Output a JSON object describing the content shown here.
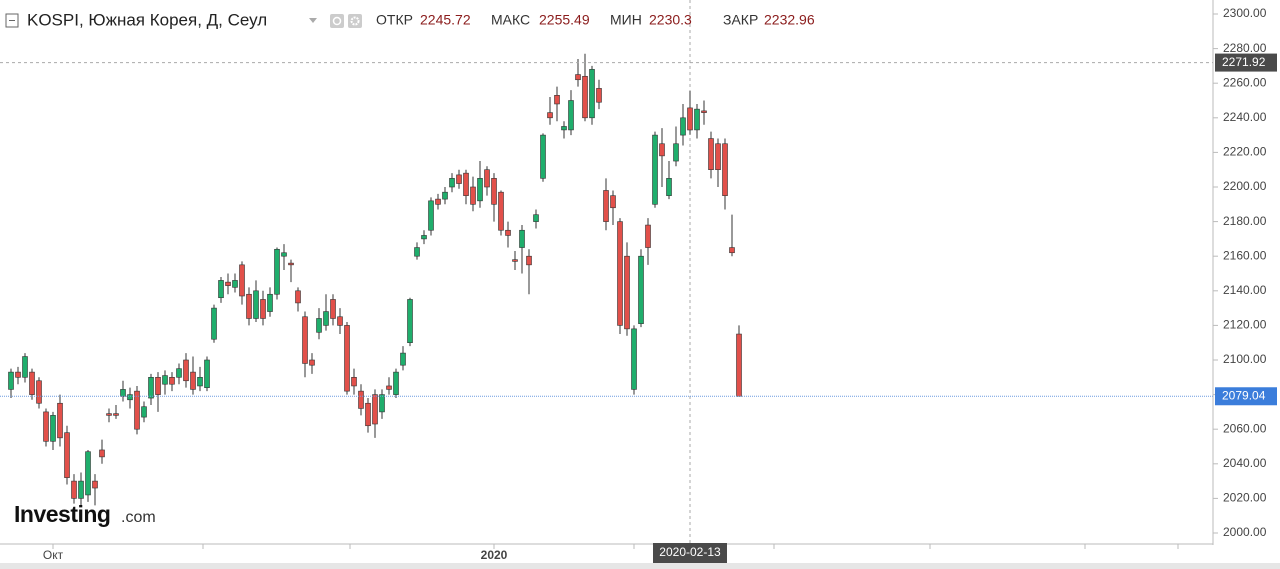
{
  "chart_data": {
    "type": "candlestick",
    "title": "KOSPI, Южная Корея, Д, Сеул",
    "header_labels": [
      "ОТКР",
      "МАКС",
      "МИН",
      "ЗАКР"
    ],
    "logo": {
      "main": "Investing",
      "suffix": ".com"
    },
    "up_color": "#1fae6c",
    "down_color": "#e2504a",
    "categories": [
      null,
      null,
      null,
      null,
      null,
      null,
      "Окт",
      null,
      null,
      null,
      null,
      null,
      null,
      null,
      null,
      null,
      null,
      null,
      null,
      null,
      null,
      null,
      null,
      null,
      null,
      null,
      null,
      null,
      null,
      null,
      null,
      null,
      null,
      null,
      null,
      null,
      null,
      null,
      null,
      null,
      null,
      null,
      null,
      null,
      null,
      null,
      null,
      null,
      null,
      null,
      null,
      null,
      null,
      null,
      null,
      null,
      null,
      null,
      null,
      null,
      null,
      null,
      null,
      null,
      null,
      null,
      null,
      null,
      null,
      "2020",
      null,
      null,
      null,
      null,
      null,
      null,
      null,
      null,
      null,
      null,
      null,
      null,
      null,
      null,
      null,
      null,
      null,
      null,
      null,
      null,
      null,
      null,
      null,
      null,
      null,
      null,
      null,
      "2020-02-13",
      null,
      null,
      null,
      null,
      null,
      null,
      null
    ],
    "open": [
      2083,
      2093,
      2090,
      2093,
      2088,
      2070,
      2053,
      2075,
      2058,
      2030,
      2020,
      2022,
      2030,
      2048,
      2069,
      2069,
      2079,
      2077,
      2082,
      2067,
      2078,
      2090,
      2086,
      2090,
      2090,
      2100,
      2093,
      2085,
      2084,
      2112,
      2136,
      2145,
      2142,
      2155,
      2138,
      2124,
      2135,
      2128,
      2138,
      2160,
      2156,
      2140,
      2125,
      2100,
      2116,
      2120,
      2135,
      2125,
      2120,
      2090,
      2082,
      2075,
      2080,
      2070,
      2085,
      2080,
      2097,
      2110,
      2160,
      2170,
      2175,
      2193,
      2193,
      2200,
      2207,
      2208,
      2200,
      2192,
      2210,
      2205,
      2197,
      2175,
      2158,
      2165,
      2160,
      2180,
      2205,
      2243,
      2253,
      2233,
      2233,
      2265,
      2264,
      2240,
      2257,
      2198,
      2195,
      2180,
      2160,
      2083,
      2121,
      2178,
      2190,
      2225,
      2195,
      2215,
      2230,
      2245.72,
      2233,
      2244,
      2228,
      2225,
      2225,
      2165,
      2115
    ],
    "high": [
      2095,
      2096,
      2104,
      2095,
      2090,
      2072,
      2070,
      2080,
      2062,
      2034,
      2035,
      2048,
      2034,
      2054,
      2072,
      2074,
      2088,
      2084,
      2085,
      2076,
      2092,
      2093,
      2094,
      2093,
      2098,
      2104,
      2102,
      2096,
      2102,
      2132,
      2148,
      2150,
      2150,
      2157,
      2142,
      2146,
      2140,
      2142,
      2165,
      2167,
      2158,
      2142,
      2128,
      2104,
      2130,
      2138,
      2138,
      2130,
      2122,
      2095,
      2086,
      2078,
      2083,
      2083,
      2090,
      2095,
      2108,
      2136,
      2168,
      2175,
      2194,
      2196,
      2200,
      2208,
      2210,
      2210,
      2206,
      2215,
      2212,
      2208,
      2198,
      2180,
      2163,
      2178,
      2164,
      2187,
      2231,
      2252,
      2258,
      2238,
      2256,
      2274,
      2277,
      2270,
      2262,
      2205,
      2198,
      2182,
      2168,
      2120,
      2164,
      2182,
      2232,
      2234,
      2215,
      2235,
      2248,
      2255.49,
      2248,
      2250,
      2232,
      2228,
      2228,
      2184,
      2120
    ],
    "low": [
      2078,
      2086,
      2087,
      2077,
      2072,
      2050,
      2048,
      2050,
      2028,
      2017,
      2016,
      2018,
      2016,
      2040,
      2064,
      2066,
      2076,
      2072,
      2057,
      2064,
      2074,
      2070,
      2080,
      2082,
      2086,
      2084,
      2080,
      2082,
      2082,
      2110,
      2133,
      2138,
      2139,
      2132,
      2120,
      2122,
      2120,
      2125,
      2135,
      2152,
      2145,
      2128,
      2090,
      2092,
      2112,
      2117,
      2120,
      2115,
      2080,
      2080,
      2068,
      2058,
      2055,
      2066,
      2080,
      2078,
      2094,
      2108,
      2158,
      2167,
      2172,
      2187,
      2190,
      2197,
      2199,
      2190,
      2186,
      2188,
      2195,
      2180,
      2172,
      2165,
      2152,
      2150,
      2138,
      2176,
      2203,
      2236,
      2238,
      2228,
      2230,
      2258,
      2238,
      2236,
      2245,
      2175,
      2178,
      2115,
      2114,
      2080,
      2119,
      2155,
      2188,
      2200,
      2193,
      2212,
      2224,
      2230.3,
      2228,
      2236,
      2205,
      2200,
      2187,
      2160,
      2079.04
    ],
    "close": [
      2093,
      2090,
      2102,
      2080,
      2075,
      2053,
      2068,
      2055,
      2032,
      2020,
      2030,
      2047,
      2026,
      2044,
      2068,
      2068,
      2083,
      2080,
      2060,
      2073,
      2090,
      2080,
      2091,
      2086,
      2095,
      2088,
      2083,
      2090,
      2100,
      2130,
      2146,
      2143,
      2146,
      2137,
      2124,
      2140,
      2124,
      2138,
      2164,
      2162,
      2155,
      2133,
      2098,
      2097,
      2124,
      2128,
      2124,
      2120,
      2082,
      2085,
      2072,
      2062,
      2063,
      2080,
      2083,
      2093,
      2104,
      2135,
      2165,
      2172,
      2192,
      2190,
      2197,
      2205,
      2202,
      2195,
      2190,
      2205,
      2200,
      2190,
      2175,
      2172,
      2157,
      2175,
      2155,
      2184,
      2230,
      2240,
      2248,
      2235,
      2250,
      2262,
      2240,
      2268,
      2249,
      2180,
      2188,
      2120,
      2118,
      2118,
      2160,
      2165,
      2230,
      2218,
      2205,
      2225,
      2240,
      2232.96,
      2245,
      2243,
      2210,
      2210,
      2195,
      2162,
      2079.04
    ],
    "crosshair_price": 2271.92,
    "ylim": [
      1993,
      2311
    ],
    "yticks": [
      {
        "value": 2000,
        "label": "2000.00"
      },
      {
        "value": 2020,
        "label": "2020.00"
      },
      {
        "value": 2040,
        "label": "2040.00"
      },
      {
        "value": 2060,
        "label": "2060.00"
      },
      {
        "value": 2080,
        "label": "2080.00"
      },
      {
        "value": 2100,
        "label": "2100.00"
      },
      {
        "value": 2120,
        "label": "2120.00"
      },
      {
        "value": 2140,
        "label": "2140.00"
      },
      {
        "value": 2160,
        "label": "2160.00"
      },
      {
        "value": 2180,
        "label": "2180.00"
      },
      {
        "value": 2200,
        "label": "2200.00"
      },
      {
        "value": 2220,
        "label": "2220.00"
      },
      {
        "value": 2240,
        "label": "2240.00"
      },
      {
        "value": 2260,
        "label": "2260.00"
      },
      {
        "value": 2280,
        "label": "2280.00"
      },
      {
        "value": 2300,
        "label": "2300.00"
      }
    ]
  }
}
